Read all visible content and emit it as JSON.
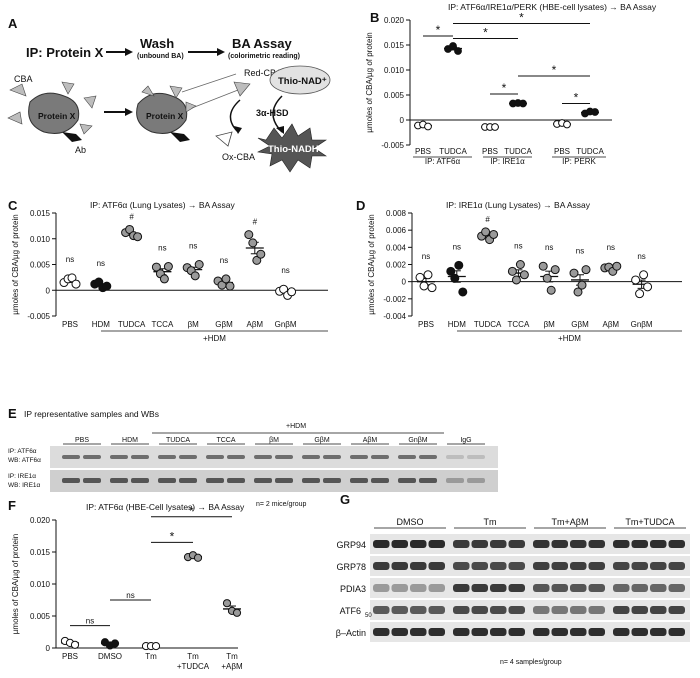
{
  "panel_letters": {
    "A": "A",
    "B": "B",
    "C": "C",
    "D": "D",
    "E": "E",
    "F": "F",
    "G": "G"
  },
  "schematic": {
    "ip_title": "IP: Protein X",
    "wash_title": "Wash",
    "wash_sub": "(unbound BA)",
    "assay_title": "BA Assay",
    "assay_sub": "(colorimetric reading)",
    "cba": "CBA",
    "protein": "Protein X",
    "ab": "Ab",
    "red_cba": "Red-CBA",
    "enzyme": "3α-HSD",
    "ox_cba": "Ox-CBA",
    "nad": "Thio-NAD⁺",
    "nadh": "Thio-NADH"
  },
  "colors": {
    "black": "#111111",
    "gray": "#9a9a9a",
    "white": "#ffffff",
    "shape": "#bdbdbd",
    "protein": "#7a7a7a",
    "burst": "#555555"
  },
  "chart_data": [
    {
      "id": "B",
      "type": "scatter",
      "title": "IP: ATF6α/IRE1α/PERK (HBE-cell lysates) → BA Assay",
      "ylabel": "µmoles of CBA/µg of protein",
      "ylim": [
        -0.005,
        0.02
      ],
      "yticks": [
        "-0.005",
        "0",
        "0.005",
        "0.010",
        "0.015",
        "0.020"
      ],
      "categories": [
        "PBS",
        "TUDCA",
        "PBS",
        "TUDCA",
        "PBS",
        "TUDCA"
      ],
      "groups": [
        "IP: ATF6α",
        "IP: IRE1α",
        "IP: PERK"
      ],
      "fills": [
        "white",
        "black",
        "white",
        "black",
        "white",
        "black"
      ],
      "points": [
        [
          -0.0011,
          -0.0009,
          -0.0013
        ],
        [
          0.0142,
          0.0148,
          0.0138
        ],
        [
          -0.0014,
          -0.0014,
          -0.0014
        ],
        [
          0.0033,
          0.0034,
          0.0033
        ],
        [
          -0.0008,
          -0.0006,
          -0.0009
        ],
        [
          0.0013,
          0.0017,
          0.0016
        ]
      ],
      "means": [
        -0.0011,
        0.0143,
        -0.0014,
        0.0033,
        -0.0008,
        0.0015
      ],
      "sig": [
        {
          "a": 0,
          "b": 1,
          "y": 0.0168,
          "t": "*"
        },
        {
          "a": 1,
          "b": 3,
          "y": 0.0163,
          "t": "*"
        },
        {
          "a": 1,
          "b": 5,
          "y": 0.0193,
          "t": "*"
        },
        {
          "a": 2,
          "b": 3,
          "y": 0.0052,
          "t": "*"
        },
        {
          "a": 3,
          "b": 5,
          "y": 0.0088,
          "t": "*"
        },
        {
          "a": 4,
          "b": 5,
          "y": 0.0033,
          "t": "*"
        }
      ]
    },
    {
      "id": "C",
      "type": "scatter",
      "title": "IP: ATF6α (Lung Lysates) → BA Assay",
      "ylabel": "µmoles of CBA/µg of protein",
      "ylim": [
        -0.005,
        0.015
      ],
      "yticks": [
        "-0.005",
        "0",
        "0.005",
        "0.010",
        "0.015"
      ],
      "categories": [
        "PBS",
        "HDM",
        "TUDCA",
        "TCCA",
        "βM",
        "GβM",
        "AβM",
        "GnβM"
      ],
      "bracket_label": "+HDM",
      "fills": [
        "white",
        "black",
        "gray",
        "gray",
        "gray",
        "gray",
        "gray",
        "white"
      ],
      "points": [
        [
          0.0015,
          0.0022,
          0.0024,
          0.0012
        ],
        [
          0.0012,
          0.0016,
          0.0005,
          0.0008
        ],
        [
          0.0112,
          0.0118,
          0.0106,
          0.0104
        ],
        [
          0.0045,
          0.0032,
          0.0022,
          0.0046
        ],
        [
          0.0044,
          0.0038,
          0.0028,
          0.005
        ],
        [
          0.0018,
          0.001,
          0.0022,
          0.0008
        ],
        [
          0.0108,
          0.0092,
          0.0058,
          0.007
        ],
        [
          -0.0002,
          0.0002,
          -0.001,
          -0.0003
        ]
      ],
      "means": [
        0.0018,
        0.001,
        0.011,
        0.0036,
        0.004,
        0.0015,
        0.0082,
        -0.0003
      ],
      "labels": [
        "ns",
        "ns",
        "#",
        "ns",
        "ns",
        "ns",
        "#",
        "ns"
      ]
    },
    {
      "id": "D",
      "type": "scatter",
      "title": "IP: IRE1α (Lung Lysates) → BA Assay",
      "ylabel": "µmoles of CBA/µg of protein",
      "ylim": [
        -0.004,
        0.008
      ],
      "yticks": [
        "-0.004",
        "-0.002",
        "0",
        "0.002",
        "0.004",
        "0.006",
        "0.008"
      ],
      "categories": [
        "PBS",
        "HDM",
        "TUDCA",
        "TCCA",
        "βM",
        "GβM",
        "AβM",
        "GnβM"
      ],
      "bracket_label": "+HDM",
      "fills": [
        "white",
        "black",
        "gray",
        "gray",
        "gray",
        "gray",
        "gray",
        "white"
      ],
      "points": [
        [
          0.0005,
          -0.0005,
          0.0008,
          -0.0007
        ],
        [
          0.0012,
          0.0004,
          0.0019,
          -0.0012
        ],
        [
          0.0053,
          0.0058,
          0.0049,
          0.0055
        ],
        [
          0.0012,
          0.0002,
          0.002,
          0.0008
        ],
        [
          0.0018,
          0.0004,
          -0.001,
          0.0014
        ],
        [
          0.001,
          -0.0012,
          -0.0004,
          0.0014
        ],
        [
          0.0016,
          0.0017,
          0.0012,
          0.0018
        ],
        [
          0.0002,
          -0.0014,
          0.0008,
          -0.0006
        ]
      ],
      "means": [
        0.0,
        0.0006,
        0.0054,
        0.001,
        0.0006,
        0.0002,
        0.0016,
        -0.0003
      ],
      "labels": [
        "ns",
        "ns",
        "#",
        "ns",
        "ns",
        "ns",
        "ns",
        "ns"
      ]
    },
    {
      "id": "F",
      "type": "scatter",
      "title": "IP: ATF6α (HBE-Cell lysates) → BA Assay",
      "ylabel": "µmoles of CBA/µg of protein",
      "ylim": [
        0,
        0.02
      ],
      "yticks": [
        "0",
        "0.005",
        "0.010",
        "0.015",
        "0.020"
      ],
      "categories": [
        "PBS",
        "DMSO",
        "Tm",
        "Tm\n+TUDCA",
        "Tm\n+AβM"
      ],
      "fills": [
        "white",
        "black",
        "white",
        "gray",
        "gray"
      ],
      "points": [
        [
          0.0011,
          0.0008,
          0.0005
        ],
        [
          0.0009,
          0.0004,
          0.0007
        ],
        [
          0.0003,
          0.0003,
          0.0003
        ],
        [
          0.0142,
          0.0145,
          0.0141
        ],
        [
          0.007,
          0.0058,
          0.0055
        ]
      ],
      "means": [
        0.0008,
        0.0007,
        0.0003,
        0.0143,
        0.0061
      ],
      "sig": [
        {
          "a": 0,
          "b": 1,
          "y": 0.0035,
          "t": "ns"
        },
        {
          "a": 1,
          "b": 2,
          "y": 0.0075,
          "t": "ns"
        },
        {
          "a": 2,
          "b": 3,
          "y": 0.0165,
          "t": "*"
        },
        {
          "a": 2,
          "b": 4,
          "y": 0.0205,
          "t": "*"
        }
      ]
    }
  ],
  "blots_E": {
    "title": "IP representative samples and WBs",
    "hdm_label": "+HDM",
    "lanes": [
      "PBS",
      "HDM",
      "TUDCA",
      "TCCA",
      "βM",
      "GβM",
      "AβM",
      "GnβM",
      "IgG"
    ],
    "row1_label": [
      "IP: ATF6α",
      "WB: ATF6α"
    ],
    "row2_label": [
      "IP: IRE1α",
      "WB: IRE1α"
    ],
    "footer": "n= 2 mice/group"
  },
  "blots_G": {
    "groups": [
      "DMSO",
      "Tm",
      "Tm+AβM",
      "Tm+TUDCA"
    ],
    "rows": [
      "GRP94",
      "GRP78",
      "PDIA3",
      "ATF6",
      "β–Actin"
    ],
    "atf6_sub": "50",
    "footer": "n= 4 samples/group"
  }
}
